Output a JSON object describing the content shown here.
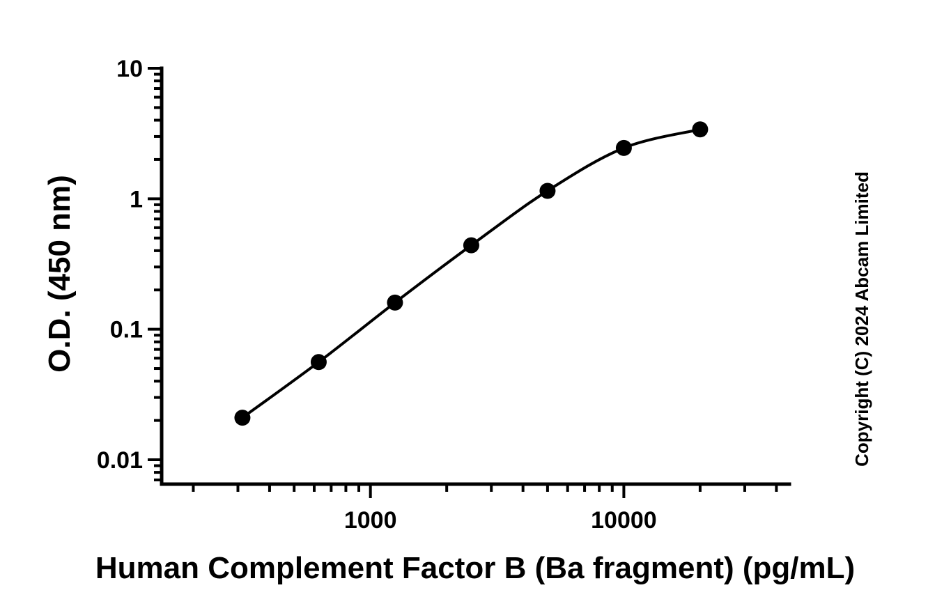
{
  "chart_data": {
    "type": "scatter",
    "x_scale": "log",
    "y_scale": "log",
    "xlim": [
      150,
      45000
    ],
    "ylim": [
      0.0065,
      10
    ],
    "xlabel": "Human Complement Factor B (Ba fragment) (pg/mL)",
    "ylabel": "O.D. (450 nm)",
    "x_ticks": [
      1000,
      10000
    ],
    "x_tick_labels": [
      "1000",
      "10000"
    ],
    "y_ticks": [
      0.01,
      0.1,
      1,
      10
    ],
    "y_tick_labels": [
      "0.01",
      "0.1",
      "1",
      "10"
    ],
    "grid": false,
    "legend": "none",
    "point_color": "#000000",
    "series": [
      {
        "x": [
          312.5,
          625,
          1250,
          2500,
          5000,
          10000,
          20000
        ],
        "y": [
          0.021,
          0.056,
          0.16,
          0.44,
          1.15,
          2.45,
          3.4
        ],
        "fit_curve": true
      }
    ]
  },
  "annotation": {
    "copyright": "Copyright (C) 2024 Abcam Limited"
  }
}
